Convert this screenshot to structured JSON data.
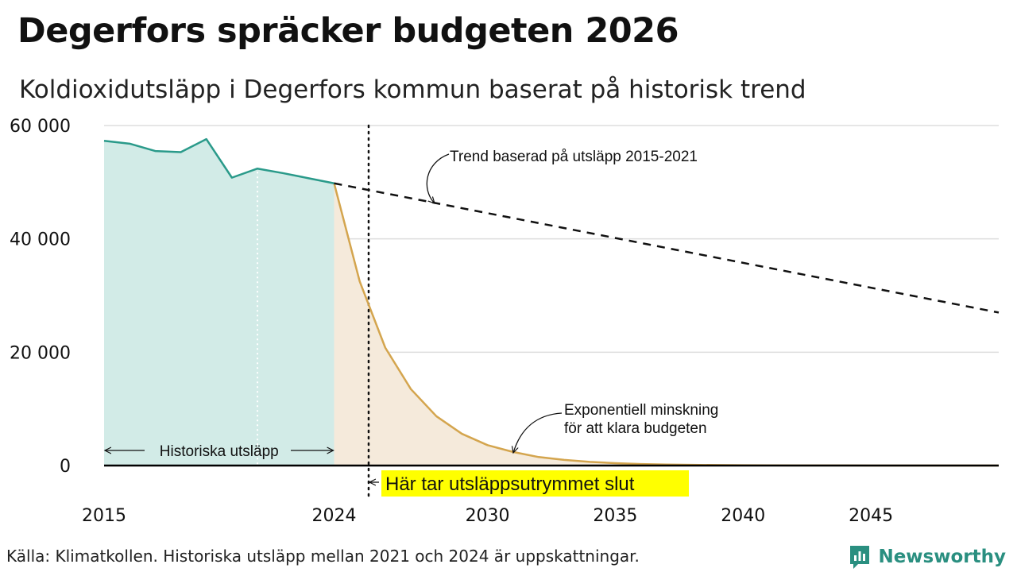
{
  "header": {
    "title": "Degerfors spräcker budgeten 2026",
    "subtitle": "Koldioxidutsläpp i Degerfors kommun baserat på historisk trend"
  },
  "footer": {
    "source": "Källa: Klimatkollen. Historiska utsläpp mellan 2021 och 2024 är uppskattningar.",
    "brand": "Newsworthy"
  },
  "colors": {
    "historical_line": "#2a9a8a",
    "historical_fill": "#d2ebe7",
    "budget_line": "#d4a54e",
    "budget_fill": "#f5eadb",
    "trend_line": "#111111",
    "highlight": "#ffff00",
    "brand": "#2a8f80"
  },
  "chart_data": {
    "type": "area",
    "title": "Koldioxidutsläpp i Degerfors kommun baserat på historisk trend",
    "xlim": [
      2015,
      2050
    ],
    "ylim": [
      0,
      60000
    ],
    "x_ticks": [
      2015,
      2024,
      2030,
      2035,
      2040,
      2045
    ],
    "y_ticks": [
      0,
      20000,
      40000,
      60000
    ],
    "x_tick_labels": [
      "2015",
      "2024",
      "2030",
      "2035",
      "2040",
      "2045"
    ],
    "y_tick_labels": [
      "0",
      "20 000",
      "40 000",
      "60 000"
    ],
    "grid": "horizontal",
    "series": [
      {
        "key": "historical",
        "x": [
          2015,
          2016,
          2017,
          2018,
          2019,
          2020,
          2021,
          2022,
          2023,
          2024
        ],
        "values": [
          57300,
          56800,
          55500,
          55300,
          57600,
          50800,
          52400,
          51600,
          50700,
          49800
        ]
      },
      {
        "key": "budget",
        "x": [
          2024,
          2025,
          2026,
          2027,
          2028,
          2029,
          2030,
          2031,
          2032,
          2033,
          2034,
          2035,
          2036,
          2037,
          2038,
          2039,
          2040,
          2041,
          2042,
          2043,
          2044,
          2045,
          2046,
          2047,
          2048,
          2049,
          2050
        ],
        "values": [
          49800,
          32500,
          20800,
          13500,
          8700,
          5600,
          3600,
          2400,
          1500,
          1000,
          650,
          420,
          270,
          180,
          120,
          80,
          50,
          35,
          22,
          15,
          10,
          6,
          4,
          3,
          2,
          1,
          1
        ]
      },
      {
        "key": "trend",
        "x": [
          2024,
          2050
        ],
        "values": [
          49800,
          27000
        ]
      }
    ],
    "vertical_markers": [
      {
        "x": 2021,
        "style": "white-dotted"
      },
      {
        "x": 2025.35,
        "style": "black-dotted"
      }
    ],
    "annotations": {
      "trend": "Trend baserad på utsläpp 2015-2021",
      "exp_line1": "Exponentiell minskning",
      "exp_line2": "för att klara budgeten",
      "historical": "Historiska utsläpp",
      "budget_end": "Här tar utsläppsutrymmet slut"
    }
  }
}
